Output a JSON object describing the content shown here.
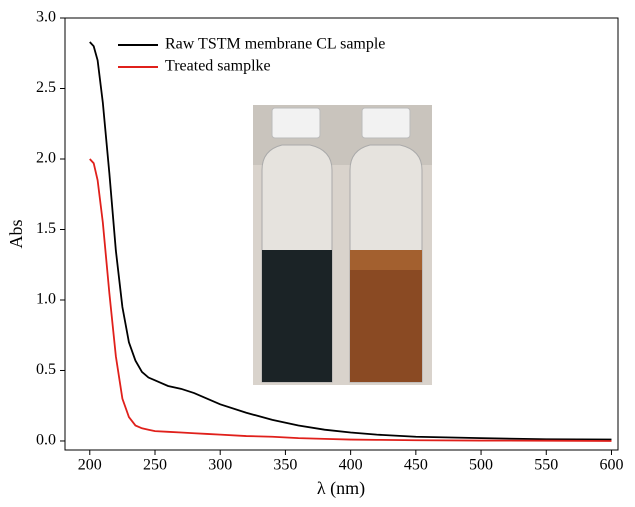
{
  "chart_data": {
    "type": "line",
    "x_label": "λ (nm)",
    "y_label": "Abs",
    "x": [
      200,
      203,
      206,
      210,
      215,
      220,
      225,
      230,
      235,
      240,
      245,
      250,
      260,
      270,
      280,
      290,
      300,
      320,
      340,
      360,
      380,
      400,
      420,
      450,
      500,
      550,
      600
    ],
    "series": [
      {
        "name": "Raw TSTM membrane CL sample",
        "color": "#000000",
        "values": [
          2.83,
          2.8,
          2.7,
          2.4,
          1.9,
          1.35,
          0.95,
          0.7,
          0.57,
          0.49,
          0.45,
          0.43,
          0.39,
          0.37,
          0.34,
          0.3,
          0.26,
          0.2,
          0.15,
          0.11,
          0.08,
          0.06,
          0.045,
          0.03,
          0.02,
          0.012,
          0.01
        ]
      },
      {
        "name": "Treated samplke",
        "color": "#e0201b",
        "values": [
          2.0,
          1.97,
          1.85,
          1.55,
          1.05,
          0.6,
          0.3,
          0.17,
          0.11,
          0.09,
          0.08,
          0.07,
          0.065,
          0.06,
          0.055,
          0.05,
          0.045,
          0.035,
          0.03,
          0.02,
          0.015,
          0.01,
          0.008,
          0.005,
          0.003,
          0.002,
          0.0
        ]
      }
    ],
    "xlim": [
      181,
      605
    ],
    "ylim": [
      -0.064,
      3.0
    ],
    "xticks": [
      200,
      250,
      300,
      350,
      400,
      450,
      500,
      550,
      600
    ],
    "yticks": [
      {
        "value": 0,
        "label": "0.0"
      },
      {
        "value": 0.5,
        "label": "0.5"
      },
      {
        "value": 1,
        "label": "1.0"
      },
      {
        "value": 1.5,
        "label": "1.5"
      },
      {
        "value": 2,
        "label": "2.0"
      },
      {
        "value": 2.5,
        "label": "2.5"
      },
      {
        "value": 3,
        "label": "3.0"
      }
    ],
    "legend": "upper-left"
  }
}
